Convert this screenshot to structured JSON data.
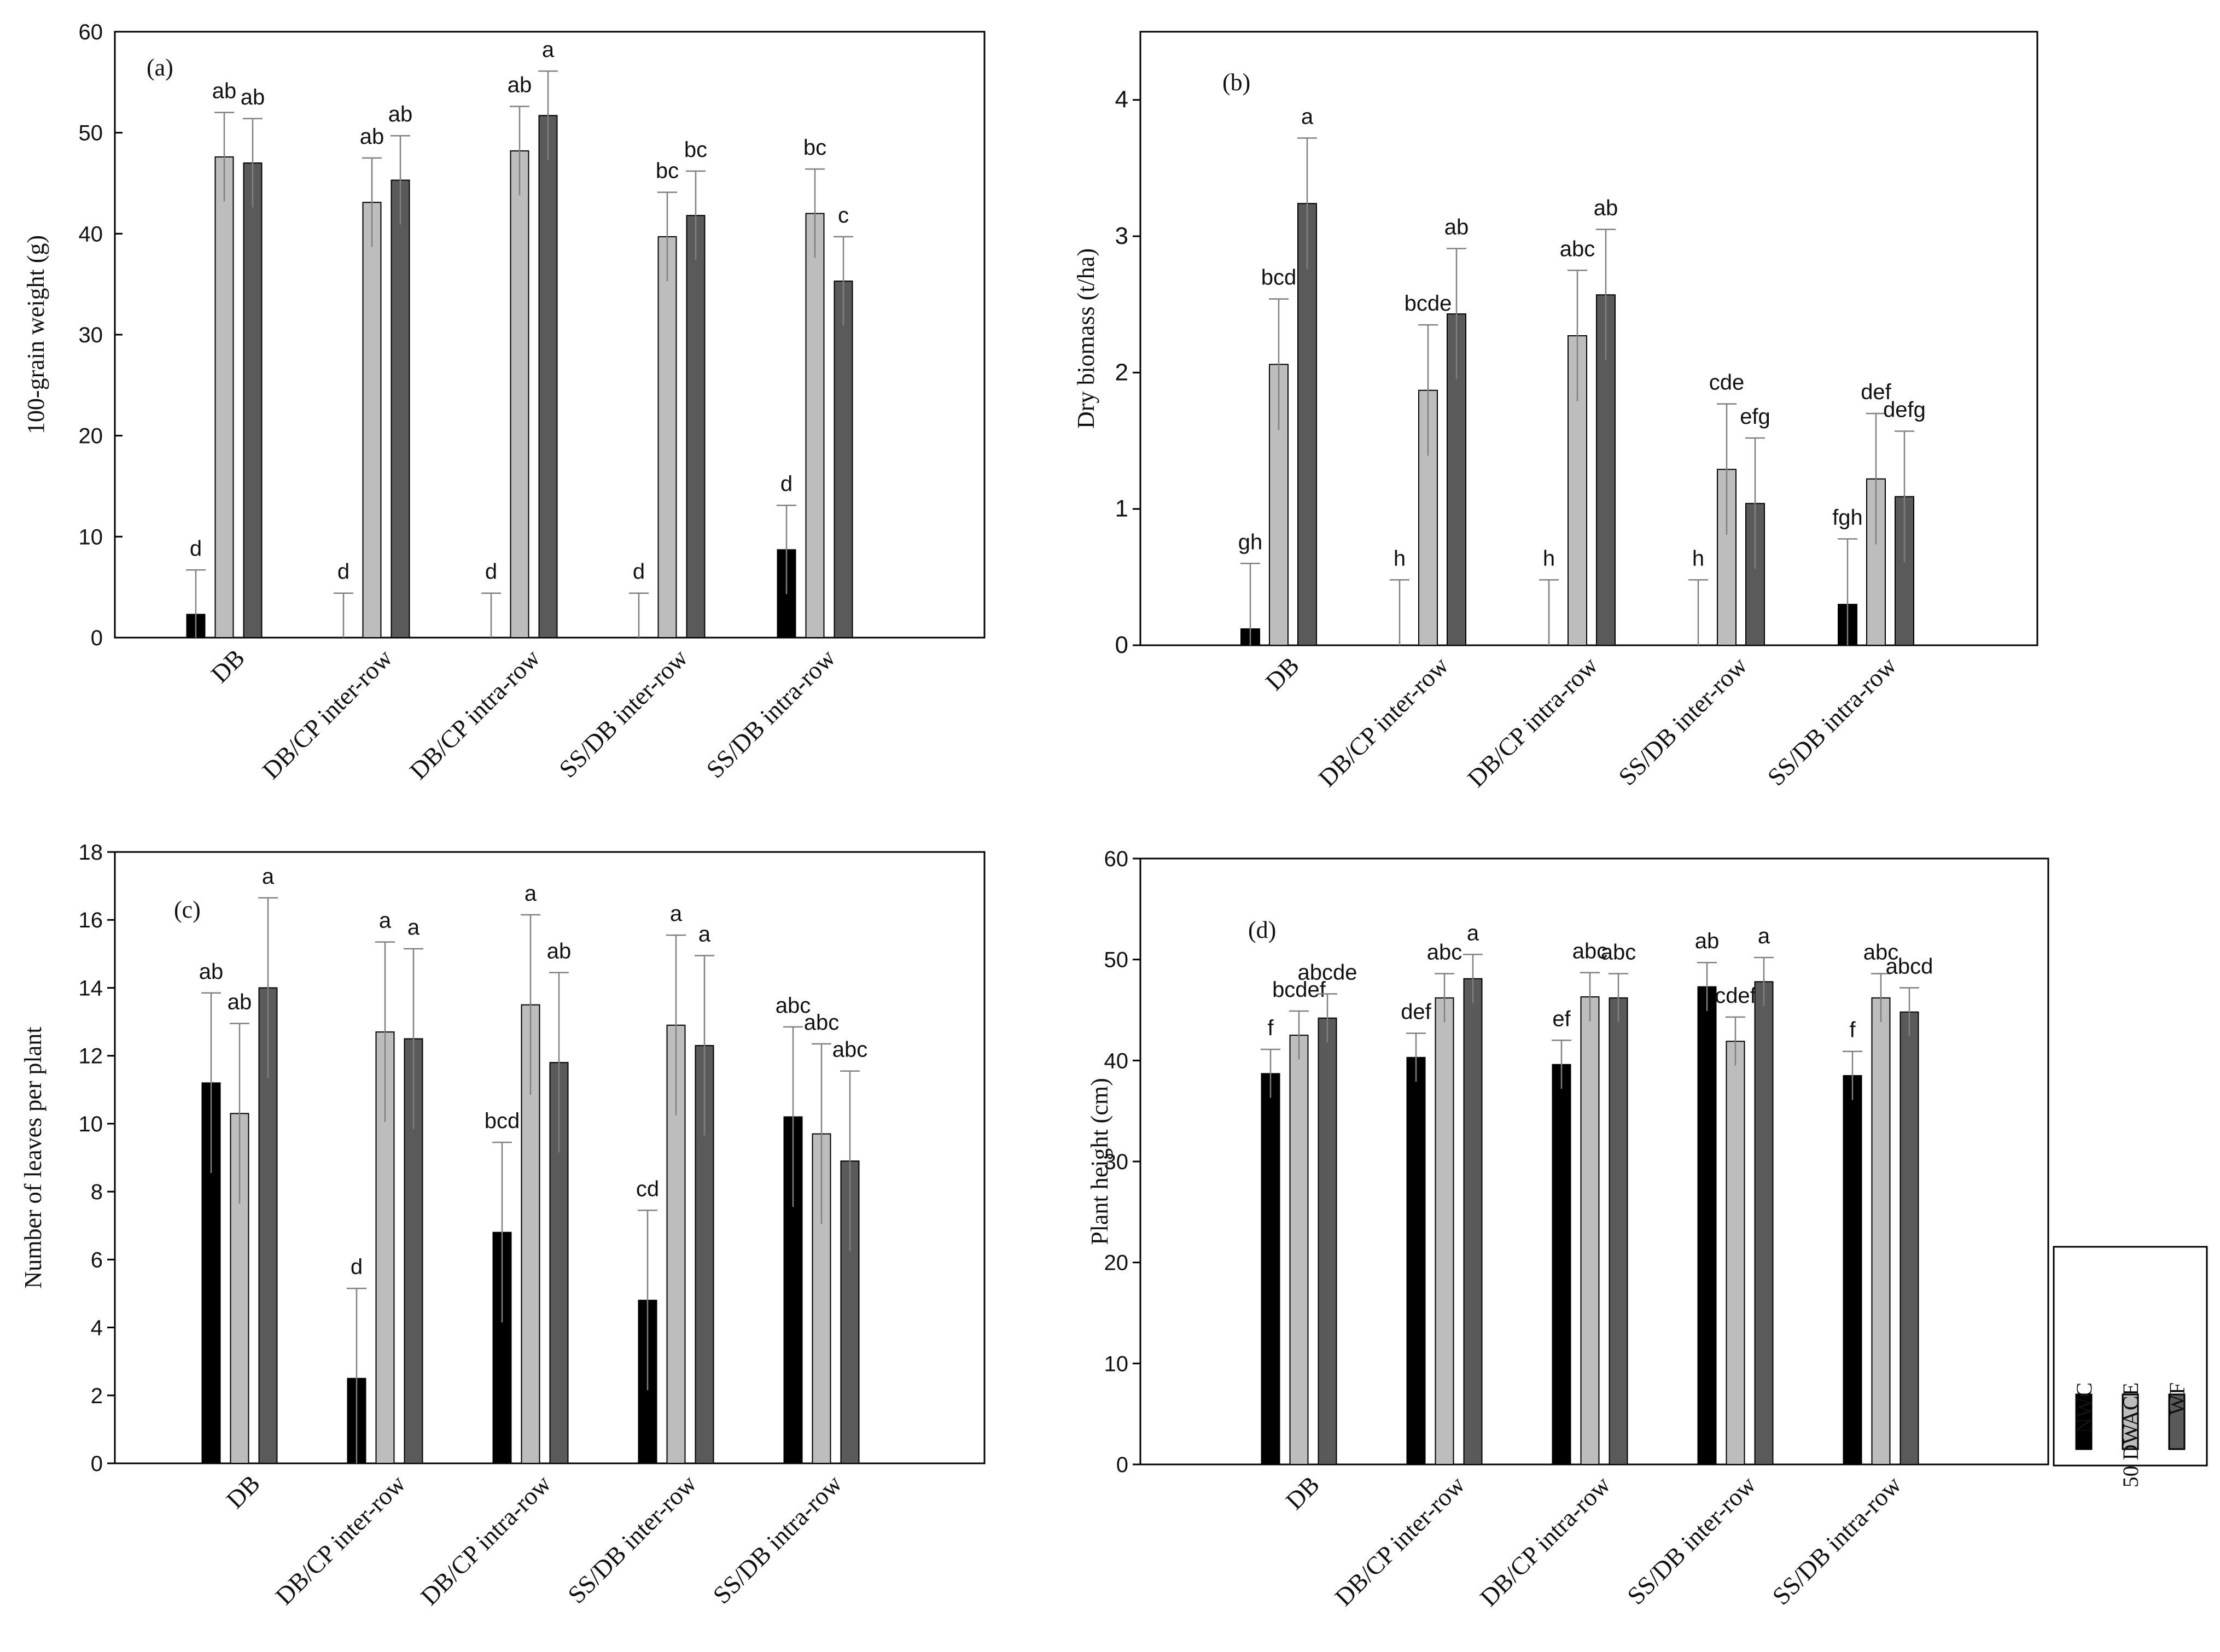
{
  "colors": {
    "NWC": "#000000",
    "50 DWACE": "#bdbdbd",
    "WF": "#5a5a5a"
  },
  "legend": {
    "series": [
      {
        "name": "NWC",
        "color": "#000000"
      },
      {
        "name": "50 DWACE",
        "color": "#bdbdbd"
      },
      {
        "name": "WF",
        "color": "#5a5a5a"
      }
    ]
  },
  "chart_data": [
    {
      "type": "bar",
      "panel_label": "(a)",
      "ylabel": "100-grain weight (g)",
      "ylim": [
        0,
        60
      ],
      "yticks": [
        "0",
        "10",
        "20",
        "30",
        "40",
        "50",
        "60"
      ],
      "categories": [
        "DB",
        "DB/CP inter-row",
        "DB/CP intra-row",
        "SS/DB inter-row",
        "SS/DB intra-row"
      ],
      "series": [
        {
          "name": "NWC",
          "values": [
            2.3,
            0,
            0,
            0,
            8.7
          ],
          "errors": [
            4.4,
            4.4,
            4.4,
            4.4,
            4.4
          ],
          "letters": [
            "d",
            "d",
            "d",
            "d",
            "d"
          ]
        },
        {
          "name": "50 DWACE",
          "values": [
            47.6,
            43.1,
            48.2,
            39.7,
            42.0
          ],
          "errors": [
            4.4,
            4.4,
            4.4,
            4.4,
            4.4
          ],
          "letters": [
            "ab",
            "ab",
            "ab",
            "bc",
            "bc"
          ]
        },
        {
          "name": "WF",
          "values": [
            47.0,
            45.3,
            51.7,
            41.8,
            35.3
          ],
          "errors": [
            4.4,
            4.4,
            4.4,
            4.4,
            4.4
          ],
          "letters": [
            "ab",
            "ab",
            "a",
            "bc",
            "c"
          ]
        }
      ]
    },
    {
      "type": "bar",
      "panel_label": "(b)",
      "ylabel": "Dry biomass (t/ha)",
      "ylim": [
        0,
        4.5
      ],
      "yticks": [
        "0",
        "1",
        "2",
        "3",
        "4"
      ],
      "categories": [
        "DB",
        "DB/CP inter-row",
        "DB/CP intra-row",
        "SS/DB inter-row",
        "SS/DB intra-row"
      ],
      "series": [
        {
          "name": "NWC",
          "values": [
            0.12,
            0,
            0,
            0,
            0.3
          ],
          "errors": [
            0.48,
            0.48,
            0.48,
            0.48,
            0.48
          ],
          "letters": [
            "gh",
            "h",
            "h",
            "h",
            "fgh"
          ]
        },
        {
          "name": "50 DWACE",
          "values": [
            2.06,
            1.87,
            2.27,
            1.29,
            1.22
          ],
          "errors": [
            0.48,
            0.48,
            0.48,
            0.48,
            0.48
          ],
          "letters": [
            "bcd",
            "bcde",
            "abc",
            "cde",
            "def"
          ]
        },
        {
          "name": "WF",
          "values": [
            3.24,
            2.43,
            2.57,
            1.04,
            1.09
          ],
          "errors": [
            0.48,
            0.48,
            0.48,
            0.48,
            0.48
          ],
          "letters": [
            "a",
            "ab",
            "ab",
            "efg",
            "defg"
          ]
        }
      ]
    },
    {
      "type": "bar",
      "panel_label": "(c)",
      "ylabel": "Number of leaves per plant",
      "ylim": [
        0,
        18
      ],
      "yticks": [
        "0",
        "2",
        "4",
        "6",
        "8",
        "10",
        "12",
        "14",
        "16",
        "18"
      ],
      "categories": [
        "DB",
        "DB/CP inter-row",
        "DB/CP intra-row",
        "SS/DB inter-row",
        "SS/DB intra-row"
      ],
      "series": [
        {
          "name": "NWC",
          "values": [
            11.2,
            2.5,
            6.8,
            4.8,
            10.2
          ],
          "errors": [
            2.65,
            2.65,
            2.65,
            2.65,
            2.65
          ],
          "letters": [
            "ab",
            "d",
            "bcd",
            "cd",
            "abc"
          ]
        },
        {
          "name": "50 DWACE",
          "values": [
            10.3,
            12.7,
            13.5,
            12.9,
            9.7
          ],
          "errors": [
            2.65,
            2.65,
            2.65,
            2.65,
            2.65
          ],
          "letters": [
            "ab",
            "a",
            "a",
            "a",
            "abc"
          ]
        },
        {
          "name": "WF",
          "values": [
            14.0,
            12.5,
            11.8,
            12.3,
            8.9
          ],
          "errors": [
            2.65,
            2.65,
            2.65,
            2.65,
            2.65
          ],
          "letters": [
            "a",
            "a",
            "ab",
            "a",
            "abc"
          ]
        }
      ]
    },
    {
      "type": "bar",
      "panel_label": "(d)",
      "ylabel": "Plant height (cm)",
      "ylim": [
        0,
        60
      ],
      "yticks": [
        "0",
        "10",
        "20",
        "30",
        "40",
        "50",
        "60"
      ],
      "categories": [
        "DB",
        "DB/CP inter-row",
        "DB/CP intra-row",
        "SS/DB inter-row",
        "SS/DB intra-row"
      ],
      "series": [
        {
          "name": "NWC",
          "values": [
            38.7,
            40.3,
            39.6,
            47.3,
            38.5
          ],
          "errors": [
            2.4,
            2.4,
            2.4,
            2.4,
            2.4
          ],
          "letters": [
            "f",
            "def",
            "ef",
            "ab",
            "f"
          ]
        },
        {
          "name": "50 DWACE",
          "values": [
            42.5,
            46.2,
            46.3,
            41.9,
            46.2
          ],
          "errors": [
            2.4,
            2.4,
            2.4,
            2.4,
            2.4
          ],
          "letters": [
            "bcdef",
            "abc",
            "abc",
            "cdef",
            "abc"
          ]
        },
        {
          "name": "WF",
          "values": [
            44.2,
            48.1,
            46.2,
            47.8,
            44.8
          ],
          "errors": [
            2.4,
            2.4,
            2.4,
            2.4,
            2.4
          ],
          "letters": [
            "abcde",
            "a",
            "abc",
            "a",
            "abcd"
          ]
        }
      ]
    }
  ]
}
